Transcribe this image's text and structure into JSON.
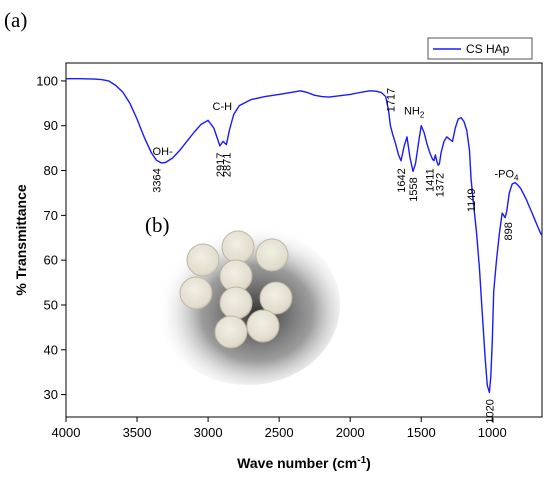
{
  "figure": {
    "panel_a_label": "(a)",
    "panel_b_label": "(b)",
    "inset_description": "photo-of-hydroxyapatite-pellets"
  },
  "chart_data": {
    "type": "line",
    "title": "",
    "xlabel": "Wave number (cm",
    "xlabel_sup": "-1",
    "xlabel_close": ")",
    "ylabel": "% Transmittance",
    "xlim": [
      4000,
      650
    ],
    "ylim": [
      25,
      104
    ],
    "x_reversed": true,
    "xticks": [
      4000,
      3500,
      3000,
      2500,
      2000,
      1500,
      1000
    ],
    "yticks": [
      30,
      40,
      50,
      60,
      70,
      80,
      90,
      100
    ],
    "grid": false,
    "legend_position": "top-right",
    "series": [
      {
        "name": "CS HAp",
        "color": "#1a1aff",
        "x": [
          4000,
          3900,
          3800,
          3750,
          3700,
          3650,
          3600,
          3550,
          3500,
          3450,
          3400,
          3364,
          3330,
          3300,
          3250,
          3200,
          3150,
          3100,
          3050,
          3000,
          2960,
          2917,
          2895,
          2871,
          2850,
          2820,
          2780,
          2700,
          2600,
          2500,
          2400,
          2350,
          2300,
          2250,
          2200,
          2150,
          2100,
          2050,
          2000,
          1950,
          1900,
          1860,
          1820,
          1780,
          1750,
          1730,
          1717,
          1700,
          1680,
          1660,
          1642,
          1620,
          1600,
          1580,
          1558,
          1540,
          1520,
          1500,
          1480,
          1460,
          1440,
          1420,
          1411,
          1400,
          1390,
          1380,
          1372,
          1360,
          1340,
          1320,
          1300,
          1280,
          1260,
          1240,
          1220,
          1200,
          1180,
          1160,
          1149,
          1130,
          1110,
          1090,
          1070,
          1050,
          1035,
          1020,
          1010,
          1000,
          990,
          970,
          950,
          930,
          910,
          898,
          880,
          860,
          840,
          820,
          800,
          780,
          760,
          740,
          720,
          700,
          680,
          660,
          650
        ],
        "y": [
          100.5,
          100.5,
          100.4,
          100.3,
          100.0,
          99.0,
          97.5,
          95.0,
          91.5,
          87.5,
          84.0,
          82.3,
          81.7,
          81.8,
          82.8,
          84.5,
          86.5,
          88.5,
          90.3,
          91.2,
          89.5,
          85.5,
          86.5,
          85.8,
          89.0,
          92.5,
          94.5,
          95.8,
          96.5,
          97.0,
          97.5,
          97.8,
          97.4,
          96.8,
          96.5,
          96.4,
          96.6,
          96.8,
          97.0,
          97.3,
          97.6,
          97.8,
          97.7,
          97.4,
          96.5,
          93.5,
          90.0,
          88.0,
          86.0,
          83.5,
          82.2,
          85.5,
          87.5,
          83.0,
          79.8,
          81.5,
          86.0,
          90.0,
          88.5,
          86.0,
          84.0,
          82.5,
          82.2,
          83.5,
          82.0,
          81.2,
          81.5,
          84.0,
          86.5,
          87.5,
          87.0,
          86.5,
          89.5,
          91.5,
          91.8,
          91.0,
          89.0,
          84.5,
          78.0,
          72.0,
          66.0,
          58.0,
          48.0,
          38.0,
          32.0,
          30.5,
          34.0,
          42.0,
          53.0,
          60.0,
          66.0,
          70.5,
          69.5,
          71.0,
          75.0,
          77.0,
          77.3,
          76.8,
          76.0,
          74.8,
          73.5,
          72.0,
          70.5,
          69.0,
          67.5,
          66.0,
          65.5
        ]
      }
    ],
    "annotations": [
      {
        "text": "OH-",
        "x": 3320,
        "y": 83.5,
        "kind": "label"
      },
      {
        "text": "C-H",
        "x": 2900,
        "y": 93.5,
        "kind": "label"
      },
      {
        "text": "NH",
        "sub": "2",
        "x": 1550,
        "y": 92.5,
        "kind": "label"
      },
      {
        "text": "-PO",
        "sub": "4",
        "x": 900,
        "y": 78.5,
        "kind": "label"
      },
      {
        "text": "3364",
        "x": 3364,
        "y": 80.5,
        "kind": "peak"
      },
      {
        "text": "2917",
        "x": 2917,
        "y": 84.0,
        "kind": "peak"
      },
      {
        "text": "2871",
        "x": 2871,
        "y": 84.0,
        "kind": "peak"
      },
      {
        "text": "1717",
        "x": 1717,
        "y": 93.0,
        "kind": "peak-above"
      },
      {
        "text": "1642",
        "x": 1642,
        "y": 80.5,
        "kind": "peak"
      },
      {
        "text": "1558",
        "x": 1558,
        "y": 78.5,
        "kind": "peak"
      },
      {
        "text": "1411",
        "x": 1440,
        "y": 80.5,
        "kind": "peak"
      },
      {
        "text": "1372",
        "x": 1372,
        "y": 79.5,
        "kind": "peak"
      },
      {
        "text": "1149",
        "x": 1149,
        "y": 76.0,
        "kind": "peak"
      },
      {
        "text": "898",
        "x": 890,
        "y": 68.5,
        "kind": "peak"
      },
      {
        "text": "1020",
        "x": 1020,
        "y": 29.0,
        "kind": "peak"
      }
    ]
  }
}
